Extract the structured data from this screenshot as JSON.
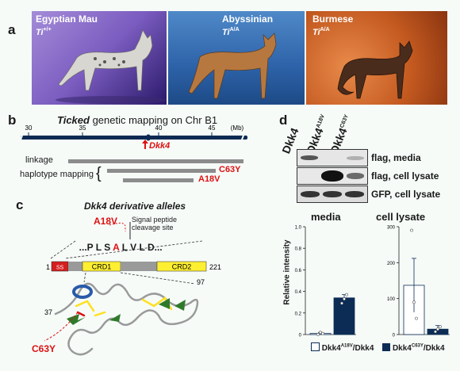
{
  "panel_a": {
    "label": "a",
    "cats": [
      {
        "breed": "Egyptian Mau",
        "genotype": "Ti",
        "superscript": "+/+"
      },
      {
        "breed": "Abyssinian",
        "genotype": "Ti",
        "superscript": "A/A"
      },
      {
        "breed": "Burmese",
        "genotype": "Ti",
        "superscript": "A/A"
      }
    ]
  },
  "panel_b": {
    "label": "b",
    "title_italic": "Ticked",
    "title_rest": " genetic mapping on Chr B1",
    "unit": "(Mb)",
    "ticks": [
      "30",
      "35",
      "40",
      "45"
    ],
    "gene": "Dkk4",
    "linkage_label": "linkage",
    "haplotype_label": "haplotype mapping",
    "haplotype_brace": "{",
    "variant_1": "C63Y",
    "variant_2": "A18V"
  },
  "panel_c": {
    "label": "c",
    "title": "Dkk4 derivative alleles",
    "variant_label": "A18V",
    "cleavage_label_1": "Signal peptide",
    "cleavage_label_2": "cleavage site",
    "seq_before": "...P L S ",
    "seq_mut": "A",
    "seq_after": " L V L D...",
    "domain_start": "1",
    "domain_end": "221",
    "domains": {
      "ss": "SS",
      "crd1": "CRD1",
      "crd2": "CRD2"
    },
    "res_37": "37",
    "res_97": "97",
    "structure_variant": "C63Y"
  },
  "panel_d": {
    "label": "d",
    "lanes": [
      {
        "name": "Dkk4",
        "sup": ""
      },
      {
        "name": "Dkk4",
        "sup": "A18V"
      },
      {
        "name": "Dkk4",
        "sup": "C63Y"
      }
    ],
    "blot_labels": [
      "flag, media",
      "flag, cell lysate",
      "GFP, cell lysate"
    ],
    "ylabel": "Relative intensity",
    "legend_open_name": "Dkk4",
    "legend_open_sup": "A18V",
    "legend_open_suffix": "/Dkk4",
    "legend_filled_name": "Dkk4",
    "legend_filled_sup": "C63Y",
    "legend_filled_suffix": "/Dkk4"
  },
  "chart_data": [
    {
      "type": "bar",
      "title": "media",
      "ylabel": "Relative intensity",
      "ylim": [
        0,
        1.0
      ],
      "yticks": [
        "0",
        "0.2",
        "0.4",
        "0.6",
        "0.8",
        "1.0"
      ],
      "categories": [
        "Dkk4A18V/Dkk4",
        "Dkk4C63Y/Dkk4"
      ],
      "values": [
        0.01,
        0.34
      ],
      "errors": [
        0.01,
        0.03
      ],
      "colors": [
        "#ffffff",
        "#0c2c55"
      ],
      "points": [
        [
          0.0,
          0.02,
          0.01
        ],
        [
          0.29,
          0.33,
          0.37
        ]
      ]
    },
    {
      "type": "bar",
      "title": "cell lysate",
      "ylim": [
        0,
        300
      ],
      "yticks": [
        "0",
        "100",
        "200",
        "300"
      ],
      "categories": [
        "Dkk4A18V/Dkk4",
        "Dkk4C63Y/Dkk4"
      ],
      "values": [
        137,
        15
      ],
      "errors": [
        75,
        10
      ],
      "colors": [
        "#ffffff",
        "#0c2c55"
      ],
      "points": [
        [
          290,
          90,
          45
        ],
        [
          8,
          15,
          22
        ]
      ]
    }
  ]
}
